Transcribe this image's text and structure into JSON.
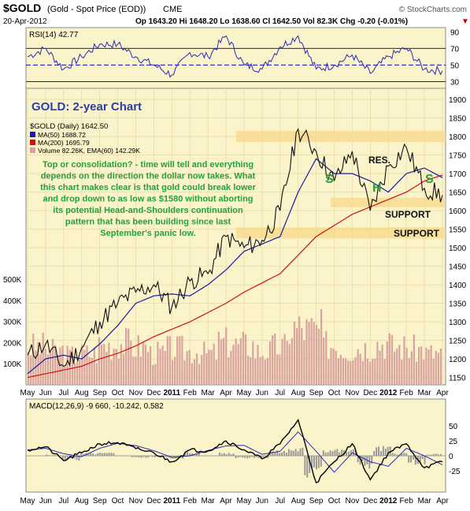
{
  "header": {
    "symbol": "$GOLD",
    "description": "(Gold - Spot Price (EOD))",
    "exchange": "CME",
    "copyright": "© StockCharts.com",
    "date": "20-Apr-2012",
    "quote": "Op 1643.20  Hi 1648.20  Lo 1638.60  Cl 1642.50  Vol 82.3K  Chg -0.20 (-0.01%)",
    "quote_arrow": "▼"
  },
  "rsi": {
    "label": "RSI(14) 42.77",
    "ticks": [
      90,
      70,
      50,
      30
    ],
    "overbought": 70,
    "oversold": 30
  },
  "main": {
    "title": "GOLD: 2-year Chart",
    "legend": {
      "price": "$GOLD (Daily) 1642.50",
      "ma50": "MA(50) 1688.72",
      "ma200": "MA(200) 1695.79",
      "volume": "Volume 82.26K, EMA(60) 142.29K"
    },
    "annotation": [
      "Top or consolidation? - time will tell and everything",
      "depends on the direction the dollar now takes. What",
      "this chart makes clear is that gold could break lower",
      "and drop down to as low as $1580 without aborting",
      "its potential Head-and-Shoulders continuation",
      "pattern that has been building since last",
      "September's panic low."
    ],
    "res_label": "RES.",
    "support_label_1": "SUPPORT",
    "support_label_2": "SUPPORT",
    "pattern_labels": [
      "S",
      "H",
      "S"
    ],
    "price_ticks": [
      1900,
      1850,
      1800,
      1750,
      1700,
      1650,
      1600,
      1550,
      1500,
      1450,
      1400,
      1350,
      1300,
      1250,
      1200,
      1150
    ],
    "volume_ticks": [
      "500K",
      "400K",
      "300K",
      "200K",
      "100K"
    ]
  },
  "macd": {
    "label": "MACD(12,26,9) -9 660, -10.242, 0.582",
    "ticks": [
      50,
      25,
      0,
      -25
    ]
  },
  "x_axis": {
    "labels": [
      "May",
      "Jun",
      "Jul",
      "Aug",
      "Sep",
      "Oct",
      "Nov",
      "Dec",
      "2011",
      "Feb",
      "Mar",
      "Apr",
      "May",
      "Jun",
      "Jul",
      "Aug",
      "Sep",
      "Oct",
      "Nov",
      "Dec",
      "2012",
      "Feb",
      "Mar",
      "Apr"
    ]
  },
  "chart_data": {
    "type": "line",
    "title": "GOLD: 2-year Chart",
    "x": [
      "2010-05",
      "2010-06",
      "2010-07",
      "2010-08",
      "2010-09",
      "2010-10",
      "2010-11",
      "2010-12",
      "2011-01",
      "2011-02",
      "2011-03",
      "2011-04",
      "2011-05",
      "2011-06",
      "2011-07",
      "2011-08",
      "2011-09",
      "2011-10",
      "2011-11",
      "2011-12",
      "2012-01",
      "2012-02",
      "2012-03",
      "2012-04"
    ],
    "ylim": [
      1130,
      1930
    ],
    "series": [
      {
        "name": "$GOLD (Daily) 1642.50",
        "values": [
          1210,
          1240,
          1180,
          1230,
          1300,
          1350,
          1380,
          1400,
          1340,
          1410,
          1430,
          1530,
          1500,
          1520,
          1600,
          1820,
          1760,
          1680,
          1760,
          1600,
          1720,
          1770,
          1660,
          1642
        ]
      },
      {
        "name": "MA(50) 1688.72",
        "values": [
          1160,
          1200,
          1210,
          1200,
          1240,
          1290,
          1350,
          1370,
          1375,
          1370,
          1400,
          1440,
          1490,
          1510,
          1530,
          1650,
          1740,
          1700,
          1700,
          1680,
          1650,
          1700,
          1715,
          1689
        ]
      },
      {
        "name": "MA(200) 1695.79",
        "values": [
          1150,
          1160,
          1170,
          1180,
          1200,
          1215,
          1235,
          1260,
          1280,
          1300,
          1325,
          1350,
          1380,
          1405,
          1430,
          1480,
          1530,
          1560,
          1590,
          1610,
          1630,
          1650,
          1680,
          1696
        ]
      }
    ],
    "rsi": [
      60,
      70,
      45,
      60,
      75,
      75,
      60,
      50,
      38,
      65,
      60,
      85,
      50,
      45,
      72,
      85,
      45,
      50,
      62,
      40,
      60,
      70,
      45,
      43
    ],
    "macd": [
      10,
      15,
      -8,
      5,
      20,
      22,
      12,
      5,
      -10,
      10,
      8,
      25,
      10,
      -5,
      20,
      60,
      -45,
      -10,
      20,
      -40,
      5,
      20,
      -20,
      -10
    ],
    "volume_k": [
      180,
      160,
      140,
      150,
      190,
      200,
      180,
      150,
      170,
      160,
      150,
      200,
      190,
      160,
      180,
      270,
      260,
      190,
      170,
      180,
      200,
      180,
      170,
      150
    ],
    "levels": {
      "resistance": 1800,
      "support_1": 1622,
      "support_2": 1540
    }
  }
}
